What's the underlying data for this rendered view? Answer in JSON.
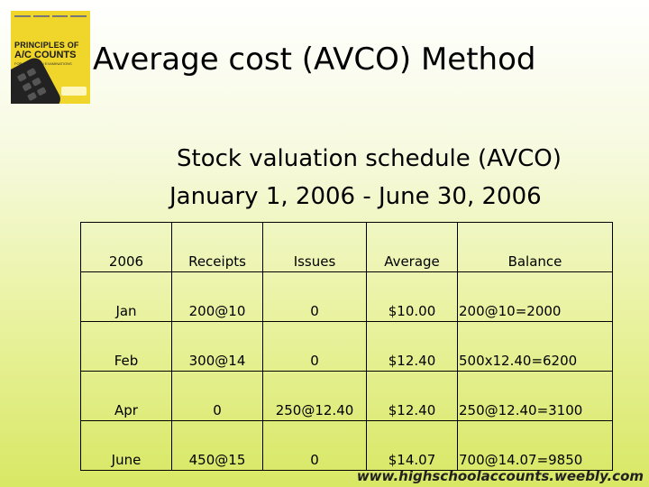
{
  "slide": {
    "title": "Average cost (AVCO) Method",
    "subtitle_line1": "Stock valuation schedule (AVCO)",
    "subtitle_line2": "January 1, 2006 - June 30, 2006"
  },
  "book_cover": {
    "line1": "PRINCIPLES OF",
    "line2": "A/C COUNTS",
    "line3": "FOR CARIBBEAN EXAMINATIONS",
    "color": "#f0d52a"
  },
  "table": {
    "headers": [
      "2006",
      "Receipts",
      "Issues",
      "Average",
      "Balance"
    ],
    "rows": [
      [
        "Jan",
        "200@10",
        "0",
        "$10.00",
        "200@10=2000"
      ],
      [
        "Feb",
        "300@14",
        "0",
        "$12.40",
        "500x12.40=6200"
      ],
      [
        "Apr",
        "0",
        "250@12.40",
        "$12.40",
        "250@12.40=3100"
      ],
      [
        "June",
        "450@15",
        "0",
        "$14.07",
        "700@14.07=9850"
      ]
    ]
  },
  "footer": {
    "url": "www.highschoolaccounts.weebly.com"
  }
}
